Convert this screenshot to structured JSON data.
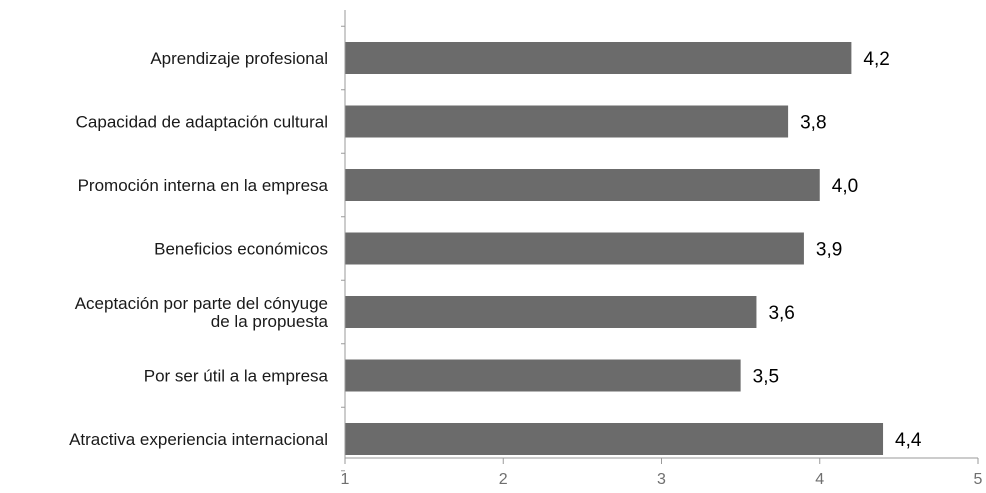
{
  "chart_data": {
    "type": "bar",
    "orientation": "horizontal",
    "title": "",
    "xlabel": "",
    "ylabel": "",
    "categories": [
      [
        "Aprendizaje profesional"
      ],
      [
        "Capacidad de adaptación cultural"
      ],
      [
        "Promoción interna en la empresa"
      ],
      [
        "Beneficios económicos"
      ],
      [
        "Aceptación por parte del cónyuge",
        "de la propuesta"
      ],
      [
        "Por ser útil a la empresa"
      ],
      [
        "Atractiva experiencia internacional"
      ]
    ],
    "values": [
      4.2,
      3.8,
      4.0,
      3.9,
      3.6,
      3.5,
      4.4
    ],
    "value_labels": [
      "4,2",
      "3,8",
      "4,0",
      "3,9",
      "3,6",
      "3,5",
      "4,4"
    ],
    "xlim": [
      1,
      5
    ],
    "x_ticks": [
      1,
      2,
      3,
      4,
      5
    ],
    "x_tick_labels": [
      "1",
      "2",
      "3",
      "4",
      "5"
    ],
    "grid": false,
    "legend": "none",
    "colors": {
      "bar": "#6b6b6b",
      "axis": "#9a9a9a"
    }
  }
}
